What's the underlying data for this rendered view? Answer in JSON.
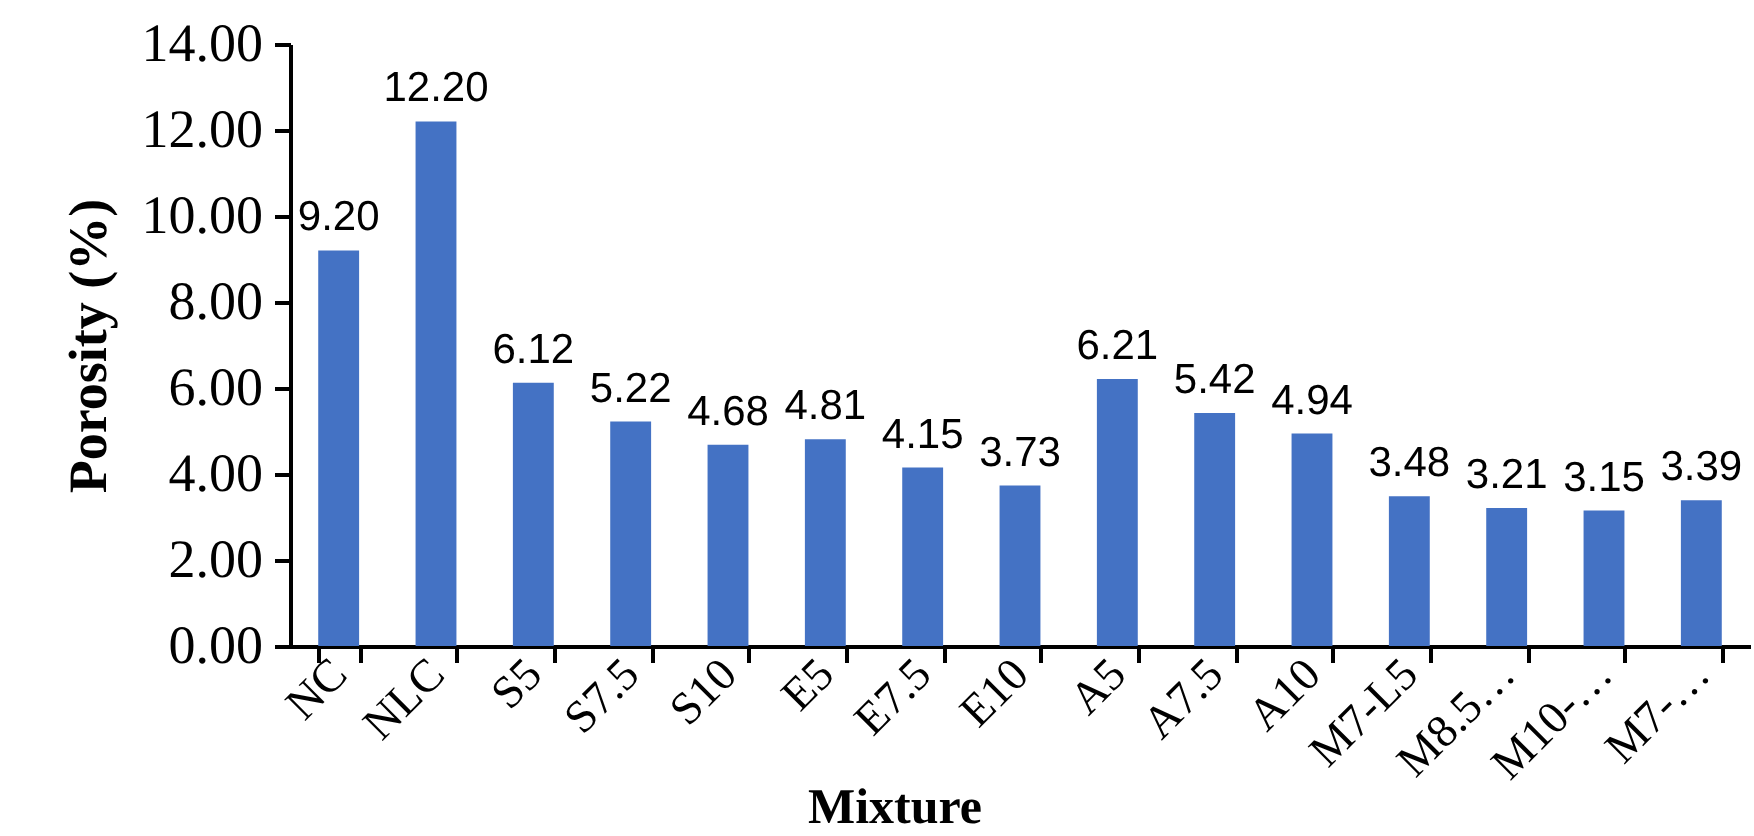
{
  "chart_data": {
    "type": "bar",
    "xlabel": "Mixture",
    "ylabel": "Porosity (%)",
    "categories": [
      "NC",
      "NLC",
      "S5",
      "S7.5",
      "S10",
      "E5",
      "E7.5",
      "E10",
      "A5",
      "A7.5",
      "A10",
      "M7-L5",
      "M8.5…",
      "M10-…",
      "M7-…"
    ],
    "values": [
      9.2,
      12.2,
      6.12,
      5.22,
      4.68,
      4.81,
      4.15,
      3.73,
      6.21,
      5.42,
      4.94,
      3.48,
      3.21,
      3.15,
      3.39
    ],
    "value_labels": [
      "9.20",
      "12.20",
      "6.12",
      "5.22",
      "4.68",
      "4.81",
      "4.15",
      "3.73",
      "6.21",
      "5.42",
      "4.94",
      "3.48",
      "3.21",
      "3.15",
      "3.39"
    ],
    "color": "#4472c4",
    "ylim": [
      0,
      14
    ],
    "yticks": [
      {
        "value": 0,
        "label": "0.00"
      },
      {
        "value": 2,
        "label": "2.00"
      },
      {
        "value": 4,
        "label": "4.00"
      },
      {
        "value": 6,
        "label": "6.00"
      },
      {
        "value": 8,
        "label": "8.00"
      },
      {
        "value": 10,
        "label": "10.00"
      },
      {
        "value": 12,
        "label": "12.00"
      },
      {
        "value": 14,
        "label": "14.00"
      }
    ]
  }
}
